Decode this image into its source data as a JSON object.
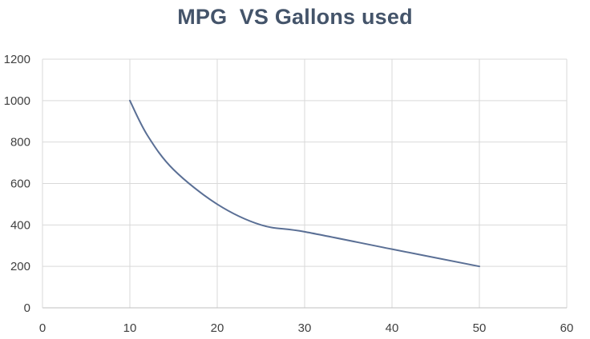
{
  "chart_data": {
    "type": "line",
    "title": "MPG  VS Gallons used",
    "xlabel": "",
    "ylabel": "",
    "xlim": [
      0,
      60
    ],
    "ylim": [
      0,
      1200
    ],
    "x_ticks": [
      "0",
      "10",
      "20",
      "30",
      "40",
      "50",
      "60"
    ],
    "y_ticks": [
      "0",
      "200",
      "400",
      "600",
      "800",
      "1000",
      "1200"
    ],
    "grid": true,
    "legend": "none",
    "series": [
      {
        "color": "#5a6f95",
        "x": [
          10,
          12,
          15,
          20,
          25,
          30,
          40,
          50
        ],
        "y": [
          1000,
          833,
          667,
          500,
          400,
          367,
          283,
          200
        ]
      }
    ]
  }
}
